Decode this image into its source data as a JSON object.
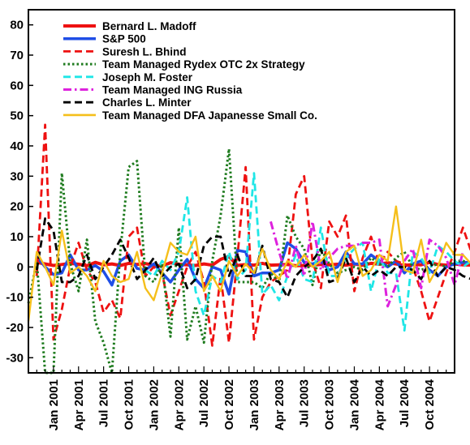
{
  "chart_data": {
    "type": "line",
    "title": "",
    "xlabel": "",
    "ylabel": "",
    "ylim": [
      -35,
      85
    ],
    "yticks": [
      -30,
      -20,
      -10,
      0,
      10,
      20,
      30,
      40,
      50,
      60,
      70,
      80
    ],
    "x_start_month": "Oct 2000",
    "x_end_month": "Jan 2005",
    "x_tick_labels": [
      "Jan 2001",
      "Apr 2001",
      "Jul 2001",
      "Oct 2001",
      "Jan 2002",
      "Apr 2002",
      "Jul 2002",
      "Oct 2002",
      "Jan 2003",
      "Apr 2003",
      "Jul 2003",
      "Oct 2003",
      "Jan 2004",
      "Apr 2004",
      "Jul 2004",
      "Oct 2004"
    ],
    "legend_position": "top-left",
    "grid": false,
    "series": [
      {
        "name": "Bernard L. Madoff",
        "color": "#ee1111",
        "dash": "solid",
        "width": 4,
        "start_month": "Nov 2000",
        "values": [
          1.5,
          1,
          0.5,
          0.8,
          1.2,
          0.9,
          0.4,
          1.5,
          0.7,
          1,
          0.5,
          1.2,
          0.8,
          1.1,
          0.6,
          0.3,
          1.4,
          0.9,
          0.7,
          0.5,
          1,
          0.6,
          2.5,
          3.5,
          0.5,
          0.8,
          0.6,
          1.2,
          0.6,
          0.7,
          0.8,
          0.4,
          0.5,
          0.6,
          0.8,
          0.7,
          0.9,
          0.6,
          1,
          0.6,
          1.2,
          0.9,
          1.4,
          1,
          0.5,
          0.8,
          0.7,
          1.5,
          0.8,
          0.6,
          1,
          0.7,
          0.6,
          0.6
        ]
      },
      {
        "name": "S&P 500",
        "color": "#1f4ee6",
        "dash": "solid",
        "width": 3.5,
        "start_month": "Nov 2000",
        "values": [
          3.5,
          0,
          -2.5,
          -2,
          4,
          -1,
          -1,
          0.5,
          -1.5,
          -6,
          2,
          4,
          -0.5,
          -1,
          1,
          -2,
          -5,
          -1,
          2.5,
          -4,
          -7,
          0,
          -1,
          -9,
          5.5,
          5,
          -3,
          -2,
          -2,
          -1,
          8,
          6,
          1.5,
          1,
          2,
          -1,
          0,
          5,
          1,
          1,
          4,
          2,
          0,
          2,
          -2,
          1,
          2,
          -1,
          -3,
          0,
          1,
          1.5,
          1.5,
          3.5
        ]
      },
      {
        "name": "Suresh L. Bhind",
        "color": "#ee1111",
        "dash": "dashed",
        "width": 2.8,
        "start_month": "Nov 2000",
        "values": [
          -3,
          47,
          -24,
          -14,
          0,
          8,
          -1,
          -5,
          -15,
          -11,
          -17,
          10,
          13,
          -3,
          0,
          -2,
          -16,
          -8,
          0,
          5,
          -5,
          -26,
          -3,
          -25,
          3,
          33,
          -24,
          -10,
          -5,
          -3,
          -1,
          24,
          30,
          2,
          -7,
          15,
          10,
          17,
          -8,
          3,
          10,
          1,
          5,
          2,
          1,
          0,
          -8,
          -18,
          -10,
          -2,
          5,
          13,
          5,
          7
        ]
      },
      {
        "name": "Team Managed Rydex OTC  2x Strategy",
        "color": "#1e7b1e",
        "dash": "dotted",
        "width": 3,
        "start_month": "Oct 2000",
        "values": [
          -12,
          2,
          -35,
          -35,
          31,
          1,
          -8,
          9,
          -18,
          -25,
          -35,
          5,
          33,
          35,
          -3,
          -5,
          1,
          -23,
          13,
          -24,
          -13,
          -25,
          2,
          17,
          39,
          -5,
          -5,
          -5,
          -7,
          -2,
          -5,
          17,
          10,
          6,
          -6,
          6,
          1,
          -2,
          -1,
          0,
          -1,
          3,
          1,
          0,
          3,
          5,
          0,
          -1,
          0,
          1,
          0,
          2,
          2,
          1
        ]
      },
      {
        "name": "Joseph M. Foster",
        "color": "#1fe6e6",
        "dash": "dashed",
        "width": 2.8,
        "start_month": "Dec 2001",
        "values": [
          -1,
          -3,
          2,
          -1,
          5,
          23,
          -8,
          -16,
          -3,
          -5,
          5,
          -4,
          -1,
          31,
          -9,
          -6,
          -11,
          -3,
          4,
          -4,
          -5,
          13,
          -3,
          -3,
          3,
          6,
          8,
          -8,
          3,
          -2,
          -2,
          -21,
          5,
          3,
          -2,
          7,
          5,
          2,
          0,
          2
        ]
      },
      {
        "name": "Team Managed ING Russia",
        "color": "#dd22dd",
        "dash": "dashdot",
        "width": 3,
        "start_month": "Mar 2003",
        "values": [
          15,
          5,
          -4,
          7,
          -3,
          15,
          -1,
          3,
          6,
          7,
          7,
          8,
          8,
          9,
          -13,
          -6,
          2,
          6,
          -7,
          9,
          7,
          3,
          -6,
          5
        ]
      },
      {
        "name": "Charles L. Minter",
        "color": "#000000",
        "dash": "dashed",
        "width": 2.8,
        "start_month": "Nov 2000",
        "values": [
          -1,
          16,
          12,
          -5,
          -5,
          -3,
          4,
          -4,
          0,
          4,
          9,
          3,
          -4,
          -1,
          3,
          -3,
          0,
          1,
          -7,
          -4,
          7,
          10,
          10,
          -3,
          4,
          -3,
          -3,
          7,
          -4,
          -5,
          -10,
          -3,
          0,
          2,
          6,
          -5,
          -4,
          3,
          -5,
          0,
          -3,
          -1,
          -3,
          0,
          0,
          -1,
          -4,
          2,
          -3,
          0,
          -1,
          -3,
          -4,
          -3
        ]
      },
      {
        "name": "Team Managed DFA Japanesse Small Co.",
        "color": "#f5bf1b",
        "dash": "solid",
        "width": 2.4,
        "start_month": "Oct 2000",
        "values": [
          -18,
          5,
          0,
          -6,
          12,
          -2,
          0,
          -3,
          -8,
          2,
          -3,
          -5,
          -4,
          5,
          -7,
          -11,
          -2,
          8,
          5,
          4,
          10,
          -8,
          -3,
          -8,
          2,
          -3,
          1,
          -2,
          6,
          -1,
          -4,
          2,
          0,
          4,
          0,
          2,
          5,
          -5,
          5,
          7,
          -3,
          -1,
          4,
          2,
          20,
          -1,
          -2,
          9,
          -5,
          0,
          8,
          4,
          4,
          1
        ]
      }
    ]
  }
}
